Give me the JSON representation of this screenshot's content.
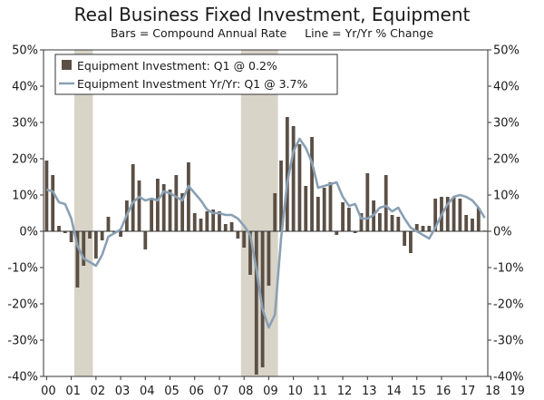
{
  "chart_data": {
    "type": "bar+line",
    "title": "Real Business Fixed Investment, Equipment",
    "subtitle": "Bars = Compound Annual Rate     Line = Yr/Yr % Change",
    "ylim": [
      -40,
      50
    ],
    "yticks_left": [
      "50%",
      "40%",
      "30%",
      "20%",
      "10%",
      "0%",
      "-10%",
      "-20%",
      "-30%",
      "-40%"
    ],
    "yticks_right": [
      "50%",
      "40%",
      "30%",
      "20%",
      "10%",
      "0%",
      "-10%",
      "-20%",
      "-30%",
      "-40%"
    ],
    "ytick_values": [
      50,
      40,
      30,
      20,
      10,
      0,
      -10,
      -20,
      -30,
      -40
    ],
    "x_labels": [
      "00",
      "01",
      "02",
      "03",
      "04",
      "05",
      "06",
      "07",
      "08",
      "09",
      "10",
      "11",
      "12",
      "13",
      "14",
      "15",
      "16",
      "17",
      "18",
      "19"
    ],
    "recessions": [
      [
        5,
        8
      ],
      [
        32,
        38
      ]
    ],
    "series": [
      {
        "name": "Equipment Investment: Q1 @ 0.2%",
        "type": "bar",
        "color": "#5b4f45",
        "values": [
          19.5,
          15.5,
          1.5,
          -0.5,
          -3.0,
          -15.5,
          -9.5,
          -2.0,
          -7.5,
          -2.5,
          4.0,
          -0.5,
          -1.5,
          8.5,
          18.5,
          14.0,
          -5.0,
          9.0,
          14.5,
          13.0,
          11.5,
          15.5,
          10.5,
          19.0,
          5.0,
          3.5,
          5.5,
          6.0,
          5.5,
          2.0,
          2.5,
          -2.0,
          -4.5,
          -12.0,
          -39.5,
          -37.5,
          -15.0,
          10.5,
          19.5,
          31.5,
          29.0,
          24.0,
          12.5,
          26.0,
          9.5,
          12.0,
          13.5,
          -1.0,
          8.0,
          6.5,
          -0.5,
          5.0,
          16.0,
          8.5,
          5.0,
          15.5,
          4.5,
          4.0,
          -4.0,
          -6.0,
          2.0,
          1.5,
          1.5,
          9.0,
          9.5,
          9.5,
          9.5,
          9.0,
          4.5,
          3.5,
          6.5,
          0.2
        ]
      },
      {
        "name": "Equipment Investment Yr/Yr: Q1 @ 3.7%",
        "type": "line",
        "color": "#8aa0b4",
        "values": [
          11.5,
          11.0,
          8.0,
          7.5,
          3.5,
          -4.0,
          -7.5,
          -8.5,
          -9.5,
          -6.5,
          -1.5,
          -0.5,
          0.5,
          4.5,
          8.0,
          9.5,
          8.5,
          9.0,
          8.5,
          11.0,
          10.5,
          9.5,
          8.5,
          12.5,
          10.5,
          8.5,
          6.0,
          5.0,
          5.0,
          4.5,
          4.5,
          3.5,
          1.5,
          -1.0,
          -10.5,
          -21.5,
          -26.5,
          -23.0,
          -2.0,
          13.5,
          22.0,
          25.5,
          23.0,
          19.0,
          12.0,
          12.5,
          13.0,
          13.5,
          9.5,
          7.0,
          7.5,
          3.5,
          3.5,
          4.5,
          6.5,
          7.0,
          5.5,
          6.5,
          3.5,
          1.0,
          0.0,
          -1.0,
          -2.0,
          1.0,
          4.5,
          7.5,
          9.5,
          10.0,
          9.5,
          8.5,
          6.5,
          3.7
        ]
      }
    ],
    "legend_position": "top-left"
  }
}
